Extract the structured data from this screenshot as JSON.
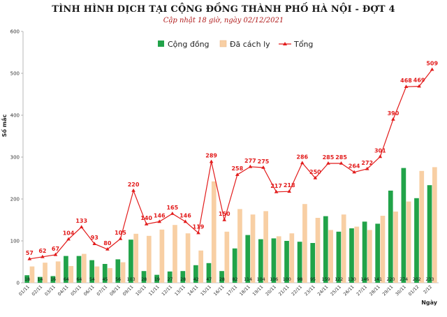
{
  "chart_data": {
    "type": "bar+line",
    "title": "TÌNH HÌNH DỊCH TẠI CỘNG ĐỒNG THÀNH PHỐ HÀ NỘI - ĐỢT 4",
    "subtitle": "Cập nhật 18 giờ, ngày 02/12/2021",
    "ylabel": "Số mắc",
    "xlabel": "Ngày",
    "ylim": [
      0,
      600
    ],
    "yticks": [
      0,
      100,
      200,
      300,
      400,
      500,
      600
    ],
    "legend_position": "top-center",
    "categories": [
      "01/11",
      "02/11",
      "03/11",
      "04/11",
      "05/11",
      "06/11",
      "07/11",
      "08/11",
      "09/11",
      "10/11",
      "11/11",
      "12/11",
      "13/11",
      "14/11",
      "15/11",
      "16/11",
      "17/11",
      "18/11",
      "19/11",
      "20/11",
      "21/11",
      "22/11",
      "23/11",
      "24/11",
      "25/11",
      "26/11",
      "27/11",
      "28/11",
      "29/11",
      "30/11",
      "01/12",
      "2/12"
    ],
    "series": [
      {
        "name": "Cộng đồng",
        "type": "bar",
        "color": "#21a349",
        "values": [
          18,
          14,
          16,
          64,
          64,
          54,
          45,
          56,
          103,
          28,
          19,
          27,
          28,
          42,
          47,
          28,
          82,
          114,
          104,
          106,
          100,
          98,
          95,
          159,
          122,
          130,
          146,
          141,
          220,
          274,
          202,
          233
        ]
      },
      {
        "name": "Đã cách ly",
        "type": "bar",
        "color": "#f8cfa4",
        "values": [
          39,
          48,
          51,
          40,
          69,
          39,
          35,
          49,
          117,
          112,
          127,
          138,
          118,
          77,
          242,
          122,
          176,
          163,
          171,
          111,
          118,
          188,
          155,
          126,
          163,
          134,
          126,
          160,
          170,
          194,
          267,
          276
        ]
      },
      {
        "name": "Tổng",
        "type": "line",
        "color": "#e21b1b",
        "values": [
          57,
          62,
          67,
          104,
          133,
          93,
          80,
          105,
          220,
          140,
          146,
          165,
          146,
          119,
          289,
          150,
          258,
          277,
          275,
          217,
          218,
          286,
          250,
          285,
          285,
          264,
          272,
          301,
          390,
          468,
          469,
          509
        ]
      }
    ]
  }
}
